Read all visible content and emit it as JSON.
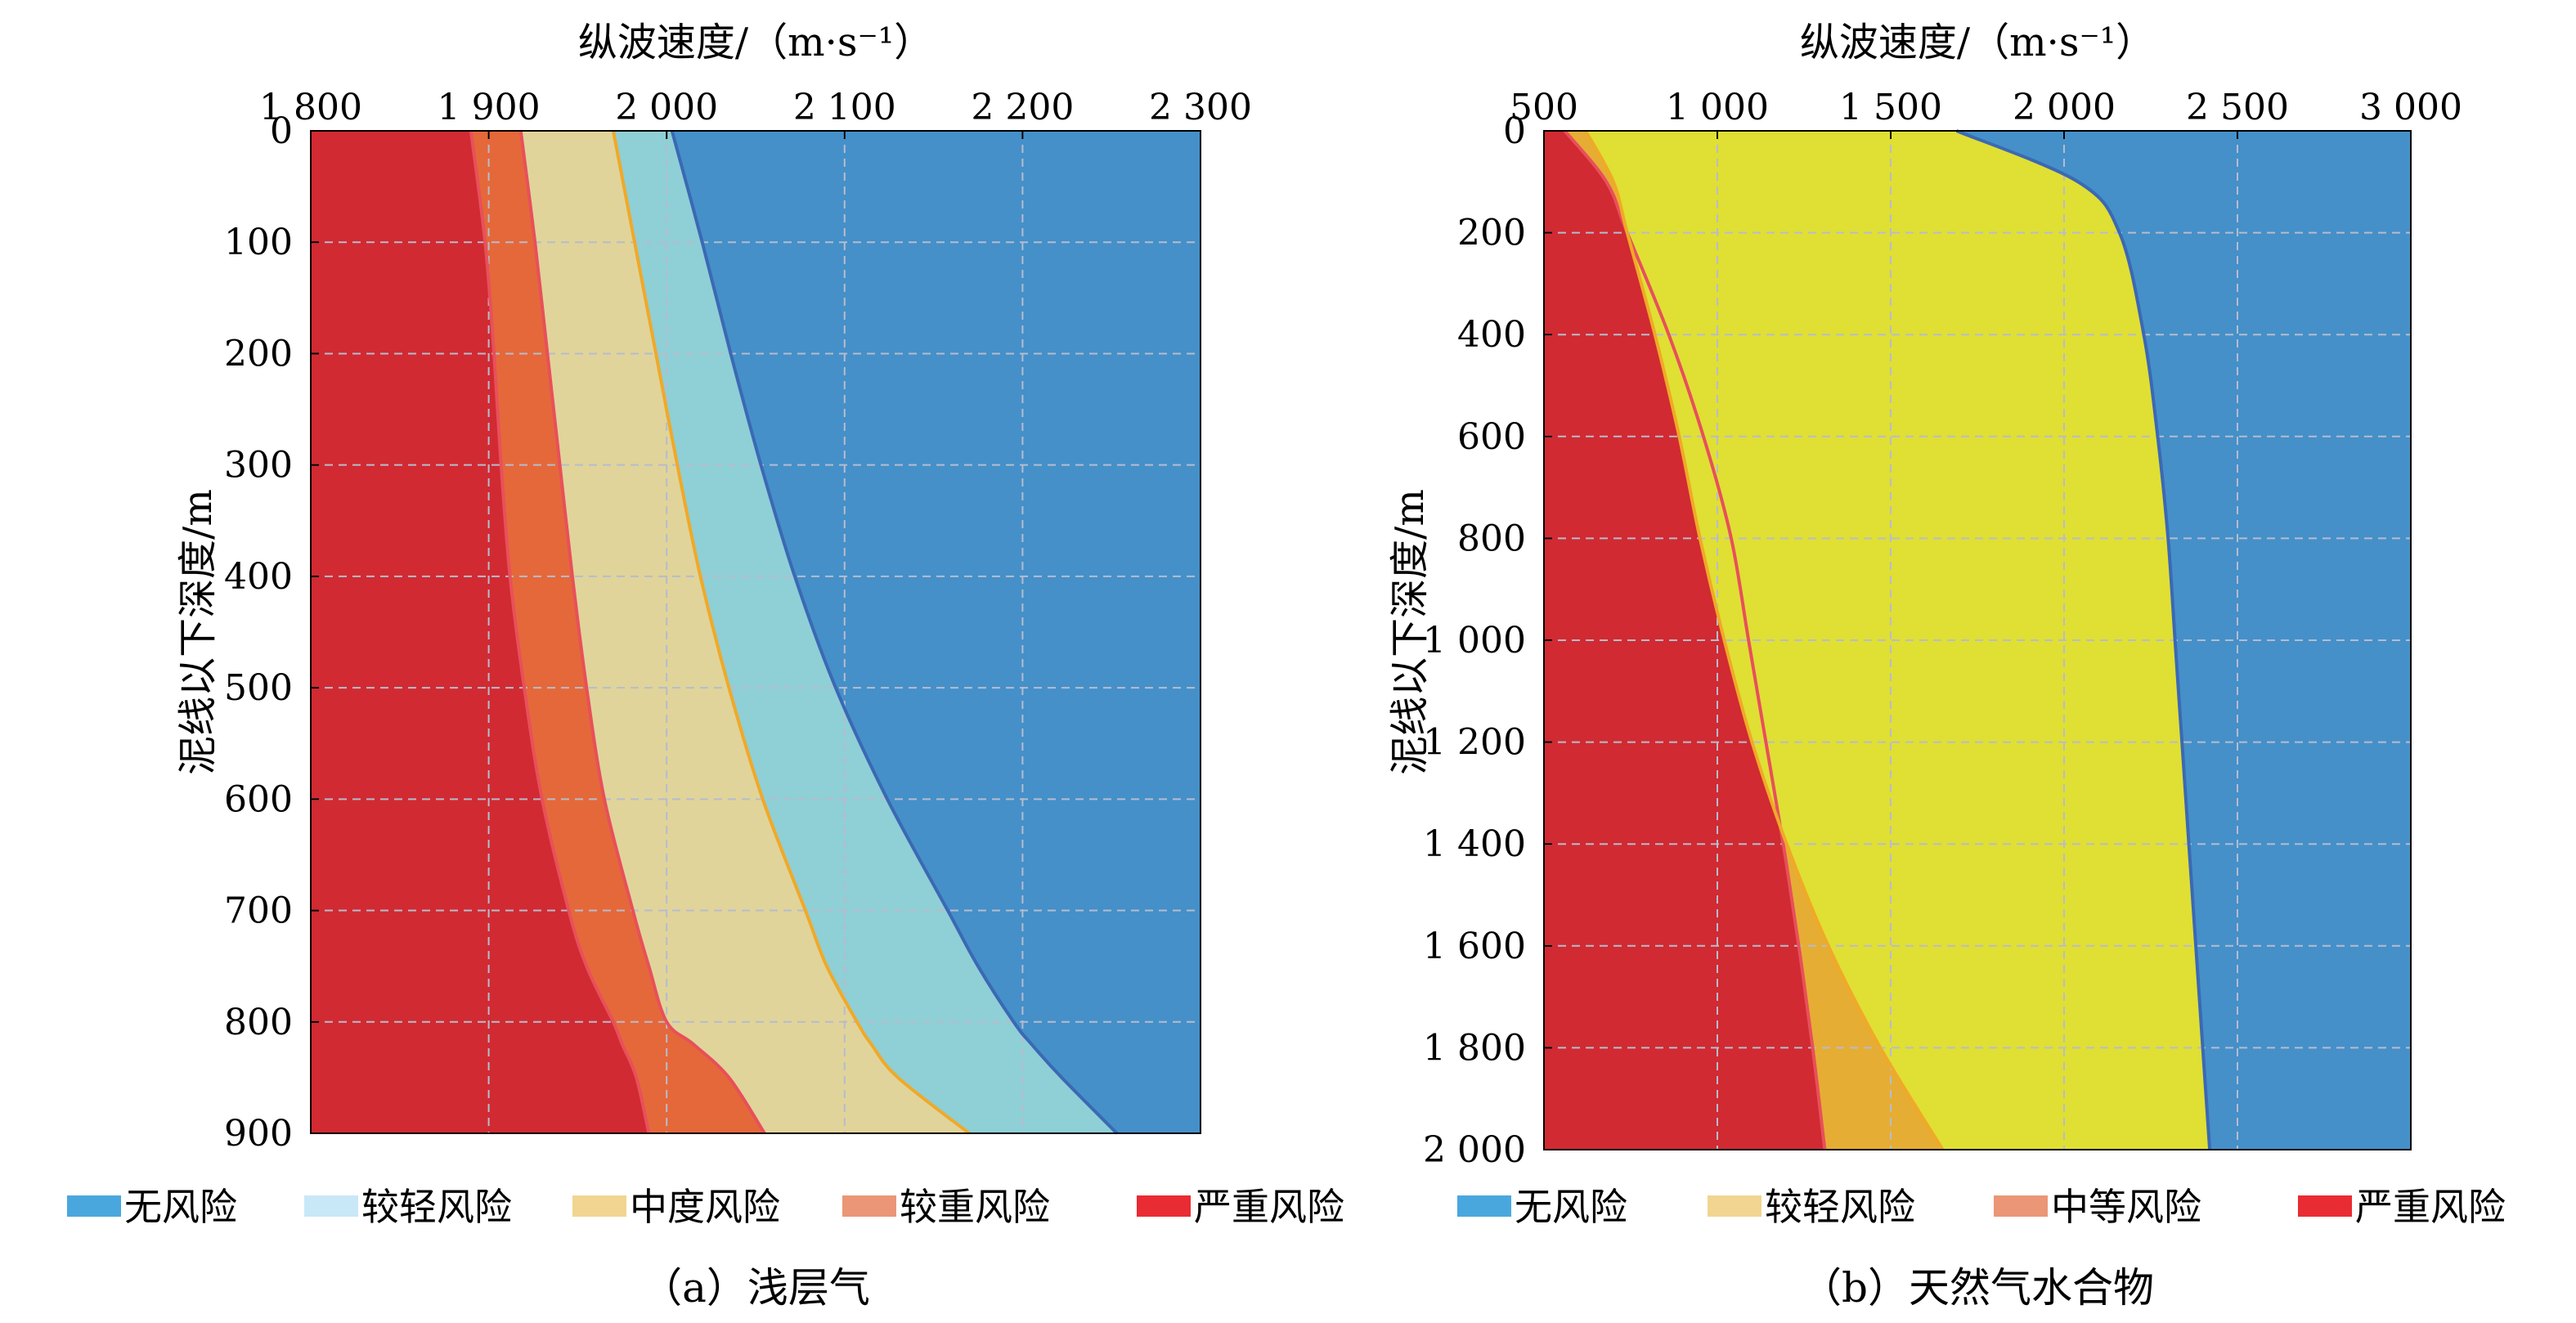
{
  "colors": {
    "no_risk": "#4590c9",
    "light_risk_a": "#8fcfd6",
    "moderate_risk_a": "#e0d49a",
    "heavy_risk_a": "#e5683a",
    "severe_risk": "#d12a32",
    "light_risk_b": "#e0df34",
    "moderate_risk_b": "#e6ad34",
    "legend_no_risk": "#4aa7de",
    "legend_light_risk_a": "#c9e8f7",
    "legend_moderate_risk_a": "#f1d590",
    "legend_heavy_risk_a": "#eb9676",
    "legend_severe_risk": "#e92b33",
    "legend_light_risk_b": "#f1d590",
    "legend_moderate_risk_b": "#eb9676",
    "boundary_blue": "#3b69b4",
    "boundary_orange": "#f0a928",
    "boundary_red": "#e8505a",
    "grid": "#b6bccd"
  },
  "chart_data": [
    {
      "type": "area",
      "caption": "（a）浅层气",
      "xlabel": "纵波速度/（m·s⁻¹）",
      "ylabel": "泥线以下深度/m",
      "xlim": [
        1800,
        2300
      ],
      "ylim": [
        0,
        900
      ],
      "y_inverted": true,
      "x_axis_position": "top",
      "xticks": [
        1800,
        1900,
        2000,
        2100,
        2200,
        2300
      ],
      "xtick_labels": [
        "1 800",
        "1 900",
        "2 000",
        "2 100",
        "2 200",
        "2 300"
      ],
      "yticks": [
        0,
        100,
        200,
        300,
        400,
        500,
        600,
        700,
        800,
        900
      ],
      "ytick_labels": [
        "0",
        "100",
        "200",
        "300",
        "400",
        "500",
        "600",
        "700",
        "800",
        "900"
      ],
      "grid": true,
      "legend": [
        "无风险",
        "较轻风险",
        "中度风险",
        "较重风险",
        "严重风险"
      ],
      "legend_placement": "bottom",
      "depth": [
        0,
        100,
        200,
        300,
        400,
        500,
        600,
        700,
        750,
        800,
        820,
        850,
        900
      ],
      "boundaries": [
        {
          "between": "严重风险|较重风险",
          "values": [
            1890,
            1898,
            1903,
            1907,
            1912,
            1920,
            1930,
            1945,
            1955,
            1970,
            1975,
            1983,
            1990
          ]
        },
        {
          "between": "较重风险|中度风险",
          "values": [
            1918,
            1926,
            1933,
            1940,
            1947,
            1955,
            1965,
            1981,
            1990,
            2000,
            2015,
            2035,
            2055
          ]
        },
        {
          "between": "中度风险|较轻风险",
          "values": [
            1970,
            1982,
            1994,
            2006,
            2019,
            2035,
            2054,
            2078,
            2090,
            2107,
            2115,
            2130,
            2170
          ]
        },
        {
          "between": "较轻风险|无风险",
          "values": [
            2003,
            2020,
            2036,
            2053,
            2072,
            2095,
            2124,
            2158,
            2175,
            2195,
            2205,
            2222,
            2253
          ]
        }
      ]
    },
    {
      "type": "area",
      "caption": "（b）天然气水合物",
      "xlabel": "纵波速度/（m·s⁻¹）",
      "ylabel": "泥线以下深度/m",
      "xlim": [
        500,
        3000
      ],
      "ylim": [
        0,
        2000
      ],
      "y_inverted": true,
      "x_axis_position": "top",
      "xticks": [
        500,
        1000,
        1500,
        2000,
        2500,
        3000
      ],
      "xtick_labels": [
        "500",
        "1 000",
        "1 500",
        "2 000",
        "2 500",
        "3 000"
      ],
      "yticks": [
        0,
        200,
        400,
        600,
        800,
        1000,
        1200,
        1400,
        1600,
        1800,
        2000
      ],
      "ytick_labels": [
        "0",
        "200",
        "400",
        "600",
        "800",
        "1 000",
        "1 200",
        "1 400",
        "1 600",
        "1 800",
        "2 000"
      ],
      "grid": true,
      "legend": [
        "无风险",
        "较轻风险",
        "中等风险",
        "严重风险"
      ],
      "legend_placement": "bottom",
      "depth": [
        0,
        100,
        200,
        400,
        600,
        800,
        1000,
        1200,
        1400,
        1600,
        1800,
        2000
      ],
      "boundaries": [
        {
          "between": "严重风险|中等风险",
          "values": [
            560,
            680,
            740,
            860,
            960,
            1040,
            1090,
            1140,
            1190,
            1235,
            1275,
            1310
          ]
        },
        {
          "between": "中等风险|较轻风险",
          "values": [
            620,
            700,
            740,
            820,
            890,
            950,
            1020,
            1100,
            1200,
            1320,
            1470,
            1650
          ]
        },
        {
          "between": "较轻风险|无风险",
          "values": [
            1690,
            2040,
            2160,
            2230,
            2270,
            2300,
            2320,
            2340,
            2360,
            2380,
            2400,
            2420
          ]
        }
      ]
    }
  ]
}
